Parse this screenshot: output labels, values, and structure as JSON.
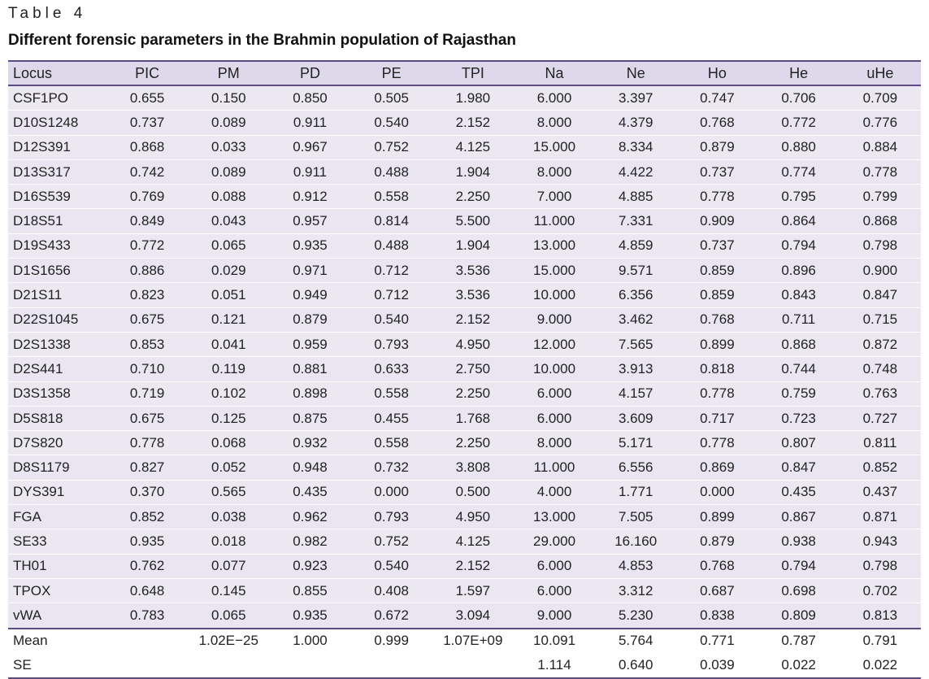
{
  "table_label": "Table 4",
  "caption": "Different forensic parameters in the Brahmin population of Rajasthan",
  "columns": [
    "Locus",
    "PIC",
    "PM",
    "PD",
    "PE",
    "TPI",
    "Na",
    "Ne",
    "Ho",
    "He",
    "uHe"
  ],
  "rows": [
    [
      "CSF1PO",
      "0.655",
      "0.150",
      "0.850",
      "0.505",
      "1.980",
      "6.000",
      "3.397",
      "0.747",
      "0.706",
      "0.709"
    ],
    [
      "D10S1248",
      "0.737",
      "0.089",
      "0.911",
      "0.540",
      "2.152",
      "8.000",
      "4.379",
      "0.768",
      "0.772",
      "0.776"
    ],
    [
      "D12S391",
      "0.868",
      "0.033",
      "0.967",
      "0.752",
      "4.125",
      "15.000",
      "8.334",
      "0.879",
      "0.880",
      "0.884"
    ],
    [
      "D13S317",
      "0.742",
      "0.089",
      "0.911",
      "0.488",
      "1.904",
      "8.000",
      "4.422",
      "0.737",
      "0.774",
      "0.778"
    ],
    [
      "D16S539",
      "0.769",
      "0.088",
      "0.912",
      "0.558",
      "2.250",
      "7.000",
      "4.885",
      "0.778",
      "0.795",
      "0.799"
    ],
    [
      "D18S51",
      "0.849",
      "0.043",
      "0.957",
      "0.814",
      "5.500",
      "11.000",
      "7.331",
      "0.909",
      "0.864",
      "0.868"
    ],
    [
      "D19S433",
      "0.772",
      "0.065",
      "0.935",
      "0.488",
      "1.904",
      "13.000",
      "4.859",
      "0.737",
      "0.794",
      "0.798"
    ],
    [
      "D1S1656",
      "0.886",
      "0.029",
      "0.971",
      "0.712",
      "3.536",
      "15.000",
      "9.571",
      "0.859",
      "0.896",
      "0.900"
    ],
    [
      "D21S11",
      "0.823",
      "0.051",
      "0.949",
      "0.712",
      "3.536",
      "10.000",
      "6.356",
      "0.859",
      "0.843",
      "0.847"
    ],
    [
      "D22S1045",
      "0.675",
      "0.121",
      "0.879",
      "0.540",
      "2.152",
      "9.000",
      "3.462",
      "0.768",
      "0.711",
      "0.715"
    ],
    [
      "D2S1338",
      "0.853",
      "0.041",
      "0.959",
      "0.793",
      "4.950",
      "12.000",
      "7.565",
      "0.899",
      "0.868",
      "0.872"
    ],
    [
      "D2S441",
      "0.710",
      "0.119",
      "0.881",
      "0.633",
      "2.750",
      "10.000",
      "3.913",
      "0.818",
      "0.744",
      "0.748"
    ],
    [
      "D3S1358",
      "0.719",
      "0.102",
      "0.898",
      "0.558",
      "2.250",
      "6.000",
      "4.157",
      "0.778",
      "0.759",
      "0.763"
    ],
    [
      "D5S818",
      "0.675",
      "0.125",
      "0.875",
      "0.455",
      "1.768",
      "6.000",
      "3.609",
      "0.717",
      "0.723",
      "0.727"
    ],
    [
      "D7S820",
      "0.778",
      "0.068",
      "0.932",
      "0.558",
      "2.250",
      "8.000",
      "5.171",
      "0.778",
      "0.807",
      "0.811"
    ],
    [
      "D8S1179",
      "0.827",
      "0.052",
      "0.948",
      "0.732",
      "3.808",
      "11.000",
      "6.556",
      "0.869",
      "0.847",
      "0.852"
    ],
    [
      "DYS391",
      "0.370",
      "0.565",
      "0.435",
      "0.000",
      "0.500",
      "4.000",
      "1.771",
      "0.000",
      "0.435",
      "0.437"
    ],
    [
      "FGA",
      "0.852",
      "0.038",
      "0.962",
      "0.793",
      "4.950",
      "13.000",
      "7.505",
      "0.899",
      "0.867",
      "0.871"
    ],
    [
      "SE33",
      "0.935",
      "0.018",
      "0.982",
      "0.752",
      "4.125",
      "29.000",
      "16.160",
      "0.879",
      "0.938",
      "0.943"
    ],
    [
      "TH01",
      "0.762",
      "0.077",
      "0.923",
      "0.540",
      "2.152",
      "6.000",
      "4.853",
      "0.768",
      "0.794",
      "0.798"
    ],
    [
      "TPOX",
      "0.648",
      "0.145",
      "0.855",
      "0.408",
      "1.597",
      "6.000",
      "3.312",
      "0.687",
      "0.698",
      "0.702"
    ],
    [
      "vWA",
      "0.783",
      "0.065",
      "0.935",
      "0.672",
      "3.094",
      "9.000",
      "5.230",
      "0.838",
      "0.809",
      "0.813"
    ]
  ],
  "summary_rows": [
    [
      "Mean",
      "",
      "1.02E−25",
      "1.000",
      "0.999",
      "1.07E+09",
      "10.091",
      "5.764",
      "0.771",
      "0.787",
      "0.791"
    ],
    [
      "SE",
      "",
      "",
      "",
      "",
      "",
      "1.114",
      "0.640",
      "0.039",
      "0.022",
      "0.022"
    ]
  ],
  "colors": {
    "header_fill": "#ddd9ea",
    "row_fill": "#e9e6f1",
    "rule": "#5b4a84"
  }
}
